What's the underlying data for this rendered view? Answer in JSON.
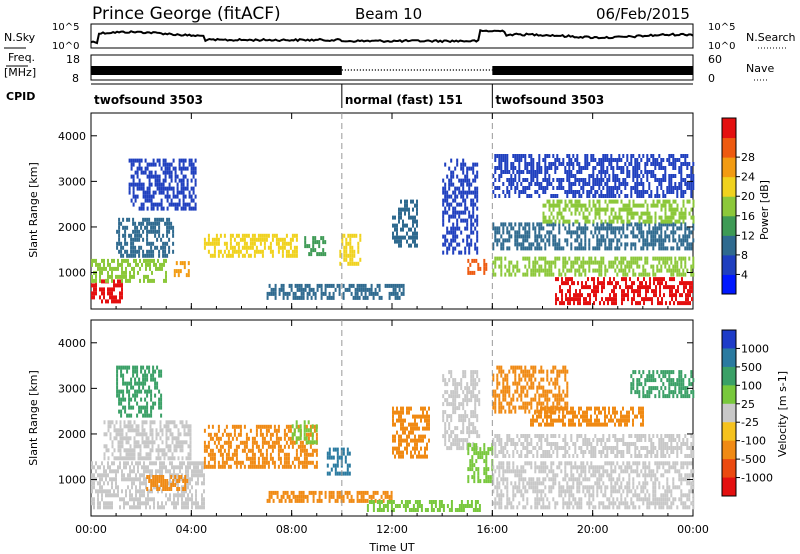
{
  "header": {
    "title": "Prince George (fitACF)",
    "beam": "Beam 10",
    "date": "06/Feb/2015"
  },
  "top_panels": {
    "nsky": {
      "label": "N.Sky",
      "tick_top": "10^5",
      "tick_bottom": "10^0"
    },
    "nsearch": {
      "label": "N.Search",
      "tick_top": "10^5",
      "tick_bottom": "10^0"
    },
    "freq": {
      "label_line1": "Freq.",
      "label_line2": "[MHz]",
      "tick_top": "18",
      "tick_bottom": "8"
    },
    "nave": {
      "label": "Nave",
      "tick_top": "60",
      "tick_bottom": "0"
    },
    "cpid": {
      "label": "CPID",
      "segments": [
        {
          "name": "twofsound 3503",
          "start_h": 0,
          "end_h": 10
        },
        {
          "name": "normal (fast) 151",
          "start_h": 10,
          "end_h": 16
        },
        {
          "name": "twofsound 3503",
          "start_h": 16,
          "end_h": 24
        }
      ]
    }
  },
  "chart_data": [
    {
      "type": "heatmap",
      "name": "power",
      "ylabel": "Slant Range [km]",
      "xlabel": "",
      "xlim_hours": [
        0,
        24
      ],
      "ylim": [
        200,
        4500
      ],
      "y_ticks": [
        1000,
        2000,
        3000,
        4000
      ],
      "x_ticks_h": [
        0,
        4,
        8,
        12,
        16,
        20,
        24
      ],
      "colorbar": {
        "label": "Power [dB]",
        "range": [
          0,
          32
        ],
        "ticks": [
          "4",
          "8",
          "12",
          "16",
          "20",
          "24",
          "28"
        ],
        "colors": [
          "#0018ff",
          "#1f3fbf",
          "#2f6a8f",
          "#3e9a55",
          "#8cc83a",
          "#f0d21e",
          "#f29b12",
          "#ee5a10",
          "#e41010"
        ]
      },
      "echo_regions": [
        {
          "t0": 0.0,
          "t1": 1.2,
          "r0": 350,
          "r1": 850,
          "value": 29
        },
        {
          "t0": 0.0,
          "t1": 3.0,
          "r0": 800,
          "r1": 1300,
          "value": 17
        },
        {
          "t0": 1.0,
          "t1": 3.3,
          "r0": 1350,
          "r1": 2200,
          "value": 10
        },
        {
          "t0": 1.5,
          "t1": 4.2,
          "r0": 2400,
          "r1": 3500,
          "value": 7
        },
        {
          "t0": 3.3,
          "t1": 4.0,
          "r0": 900,
          "r1": 1250,
          "value": 22
        },
        {
          "t0": 4.5,
          "t1": 8.2,
          "r0": 1350,
          "r1": 1850,
          "value": 18
        },
        {
          "t0": 8.5,
          "t1": 9.3,
          "r0": 1400,
          "r1": 1800,
          "value": 14
        },
        {
          "t0": 9.9,
          "t1": 10.7,
          "r0": 1200,
          "r1": 1850,
          "value": 21
        },
        {
          "t0": 7.0,
          "t1": 12.5,
          "r0": 400,
          "r1": 750,
          "value": 8
        },
        {
          "t0": 12.0,
          "t1": 13.0,
          "r0": 1600,
          "r1": 2600,
          "value": 8
        },
        {
          "t0": 14.0,
          "t1": 15.4,
          "r0": 1400,
          "r1": 3500,
          "value": 7
        },
        {
          "t0": 15.0,
          "t1": 15.8,
          "r0": 1000,
          "r1": 1300,
          "value": 25
        },
        {
          "t0": 16.0,
          "t1": 24.0,
          "r0": 950,
          "r1": 1350,
          "value": 15
        },
        {
          "t0": 18.5,
          "t1": 24.0,
          "r0": 300,
          "r1": 900,
          "value": 30
        },
        {
          "t0": 16.0,
          "t1": 24.0,
          "r0": 1500,
          "r1": 2100,
          "value": 9
        },
        {
          "t0": 18.0,
          "t1": 24.0,
          "r0": 2150,
          "r1": 2600,
          "value": 17
        },
        {
          "t0": 16.0,
          "t1": 24.0,
          "r0": 2700,
          "r1": 3600,
          "value": 6
        }
      ]
    },
    {
      "type": "heatmap",
      "name": "velocity",
      "ylabel": "Slant Range [km]",
      "xlabel": "Time UT",
      "xlim_hours": [
        0,
        24
      ],
      "ylim": [
        200,
        4500
      ],
      "y_ticks": [
        1000,
        2000,
        3000,
        4000
      ],
      "x_ticks_h": [
        0,
        4,
        8,
        12,
        16,
        20,
        24
      ],
      "x_tick_labels": [
        "00:00",
        "04:00",
        "08:00",
        "12:00",
        "16:00",
        "20:00",
        "00:00"
      ],
      "colorbar": {
        "label": "Velocity [m s-1]",
        "ticks": [
          "1000",
          "500",
          "100",
          "25",
          "-25",
          "-100",
          "-500",
          "-1000"
        ],
        "colors": [
          "#1e3cc8",
          "#2a7aa0",
          "#3aa066",
          "#78c83c",
          "#c8c8c8",
          "#f5c21e",
          "#f08a14",
          "#eb4a10",
          "#e41010"
        ]
      },
      "echo_regions": [
        {
          "t0": 0.0,
          "t1": 4.5,
          "r0": 350,
          "r1": 1400,
          "value": 0
        },
        {
          "t0": 0.5,
          "t1": 4.0,
          "r0": 1450,
          "r1": 2300,
          "value": 0
        },
        {
          "t0": 2.2,
          "t1": 3.8,
          "r0": 800,
          "r1": 1100,
          "value": -150
        },
        {
          "t0": 1.0,
          "t1": 2.8,
          "r0": 2400,
          "r1": 3500,
          "value": 150
        },
        {
          "t0": 4.5,
          "t1": 9.0,
          "r0": 1300,
          "r1": 2200,
          "value": -250
        },
        {
          "t0": 9.4,
          "t1": 10.3,
          "r0": 1100,
          "r1": 1700,
          "value": 700
        },
        {
          "t0": 8.0,
          "t1": 9.0,
          "r0": 1800,
          "r1": 2300,
          "value": 60
        },
        {
          "t0": 7.0,
          "t1": 12.0,
          "r0": 550,
          "r1": 750,
          "value": -150
        },
        {
          "t0": 11.0,
          "t1": 15.5,
          "r0": 350,
          "r1": 550,
          "value": 70
        },
        {
          "t0": 12.0,
          "t1": 13.5,
          "r0": 1500,
          "r1": 2600,
          "value": -300
        },
        {
          "t0": 14.0,
          "t1": 15.5,
          "r0": 1700,
          "r1": 3400,
          "value": 0
        },
        {
          "t0": 15.0,
          "t1": 16.0,
          "r0": 1000,
          "r1": 1800,
          "value": 60
        },
        {
          "t0": 16.0,
          "t1": 19.0,
          "r0": 2500,
          "r1": 3500,
          "value": -450
        },
        {
          "t0": 17.5,
          "t1": 22.0,
          "r0": 2200,
          "r1": 2600,
          "value": -500
        },
        {
          "t0": 16.0,
          "t1": 24.0,
          "r0": 400,
          "r1": 1400,
          "value": 0
        },
        {
          "t0": 16.0,
          "t1": 24.0,
          "r0": 1500,
          "r1": 2000,
          "value": 0
        },
        {
          "t0": 21.5,
          "t1": 24.0,
          "r0": 2800,
          "r1": 3400,
          "value": 300
        }
      ]
    }
  ]
}
